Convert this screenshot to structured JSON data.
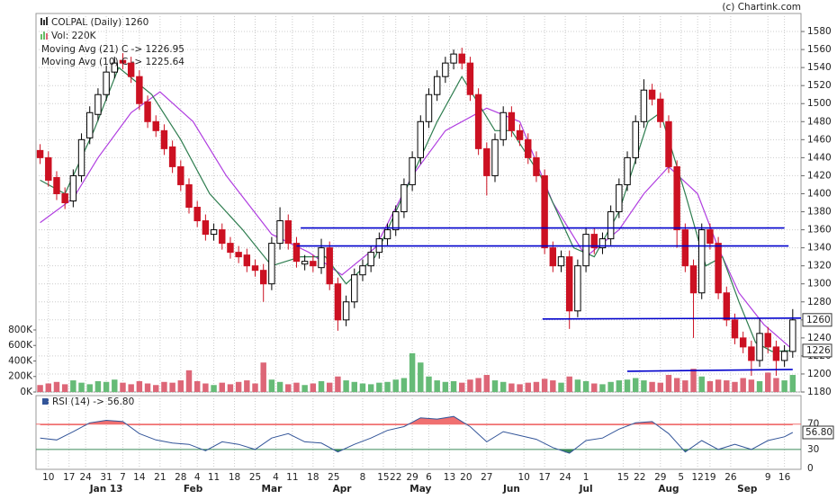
{
  "chart_data": {
    "type": "candlestick",
    "title": "COLPAL (Daily) 1260",
    "volume_title": "Vol: 220K",
    "copyright": "(c) Chartink.com",
    "xlim": [
      -2,
      183
    ],
    "ylim": [
      1180,
      1600
    ],
    "yticks": [
      1180,
      1200,
      1220,
      1240,
      1260,
      1280,
      1300,
      1320,
      1340,
      1360,
      1380,
      1400,
      1420,
      1440,
      1460,
      1480,
      1500,
      1520,
      1540,
      1560,
      1580
    ],
    "vol_ylim": [
      0,
      4880000
    ],
    "vol_ticks": [
      {
        "value": 0,
        "label": "0K"
      },
      {
        "value": 200000,
        "label": "200K"
      },
      {
        "value": 400000,
        "label": "400K"
      },
      {
        "value": 600000,
        "label": "600K"
      },
      {
        "value": 800000,
        "label": "800K"
      }
    ],
    "price_markers": [
      1260,
      1226
    ],
    "xticks": [
      {
        "value": 1,
        "label": "10"
      },
      {
        "value": 6,
        "label": "17"
      },
      {
        "value": 10,
        "label": "24"
      },
      {
        "value": 15,
        "label": "31"
      },
      {
        "value": 19,
        "label": "7"
      },
      {
        "value": 23,
        "label": "14"
      },
      {
        "value": 28,
        "label": "21"
      },
      {
        "value": 33,
        "label": "28"
      },
      {
        "value": 37,
        "label": "4"
      },
      {
        "value": 41,
        "label": "11"
      },
      {
        "value": 46,
        "label": "18"
      },
      {
        "value": 51,
        "label": "25"
      },
      {
        "value": 56,
        "label": "4"
      },
      {
        "value": 60,
        "label": "11"
      },
      {
        "value": 65,
        "label": "18"
      },
      {
        "value": 70,
        "label": "25"
      },
      {
        "value": 77,
        "label": "8"
      },
      {
        "value": 82,
        "label": "15"
      },
      {
        "value": 85,
        "label": "22"
      },
      {
        "value": 89,
        "label": "29"
      },
      {
        "value": 93,
        "label": "6"
      },
      {
        "value": 98,
        "label": "13"
      },
      {
        "value": 102,
        "label": "20"
      },
      {
        "value": 107,
        "label": "27"
      },
      {
        "value": 116,
        "label": "10"
      },
      {
        "value": 121,
        "label": "17"
      },
      {
        "value": 126,
        "label": "24"
      },
      {
        "value": 131,
        "label": "1"
      },
      {
        "value": 140,
        "label": "15"
      },
      {
        "value": 144,
        "label": "22"
      },
      {
        "value": 149,
        "label": "29"
      },
      {
        "value": 154,
        "label": "5"
      },
      {
        "value": 158,
        "label": "12"
      },
      {
        "value": 161,
        "label": "19"
      },
      {
        "value": 166,
        "label": "26"
      },
      {
        "value": 175,
        "label": "9"
      },
      {
        "value": 179,
        "label": "16"
      }
    ],
    "months": [
      {
        "value": 15,
        "label": "Jan 13"
      },
      {
        "value": 36,
        "label": "Feb"
      },
      {
        "value": 55,
        "label": "Mar"
      },
      {
        "value": 72,
        "label": "Apr"
      },
      {
        "value": 91,
        "label": "May"
      },
      {
        "value": 113,
        "label": "Jun"
      },
      {
        "value": 131,
        "label": "Jul"
      },
      {
        "value": 151,
        "label": "Aug"
      },
      {
        "value": 170,
        "label": "Sep"
      }
    ],
    "up_color": "#000000",
    "down_color": "#cc1122",
    "vol_up_color": "#66bb77",
    "vol_down_color": "#dd6677",
    "x": [
      -1,
      1,
      3,
      5,
      7,
      9,
      11,
      13,
      15,
      17,
      19,
      21,
      23,
      25,
      27,
      29,
      31,
      33,
      35,
      37,
      39,
      41,
      43,
      45,
      47,
      49,
      51,
      53,
      55,
      57,
      59,
      61,
      63,
      65,
      67,
      69,
      71,
      73,
      75,
      77,
      79,
      81,
      83,
      85,
      87,
      89,
      91,
      93,
      95,
      97,
      99,
      101,
      103,
      105,
      107,
      109,
      111,
      113,
      115,
      117,
      119,
      121,
      123,
      125,
      127,
      129,
      131,
      133,
      135,
      137,
      139,
      141,
      143,
      145,
      147,
      149,
      151,
      153,
      155,
      157,
      159,
      161,
      163,
      165,
      167,
      169,
      171,
      173,
      175,
      177,
      179,
      181
    ],
    "candles": [
      [
        1448,
        1455,
        1433,
        1440
      ],
      [
        1440,
        1447,
        1408,
        1415
      ],
      [
        1418,
        1425,
        1393,
        1400
      ],
      [
        1400,
        1407,
        1383,
        1390
      ],
      [
        1392,
        1427,
        1385,
        1420
      ],
      [
        1420,
        1467,
        1413,
        1460
      ],
      [
        1462,
        1497,
        1455,
        1490
      ],
      [
        1488,
        1517,
        1481,
        1510
      ],
      [
        1510,
        1542,
        1503,
        1535
      ],
      [
        1535,
        1552,
        1528,
        1545
      ],
      [
        1548,
        1556,
        1538,
        1545
      ],
      [
        1545,
        1552,
        1523,
        1530
      ],
      [
        1530,
        1537,
        1493,
        1500
      ],
      [
        1502,
        1509,
        1473,
        1480
      ],
      [
        1480,
        1487,
        1463,
        1470
      ],
      [
        1470,
        1477,
        1443,
        1450
      ],
      [
        1452,
        1459,
        1423,
        1430
      ],
      [
        1430,
        1437,
        1403,
        1410
      ],
      [
        1410,
        1417,
        1378,
        1385
      ],
      [
        1385,
        1392,
        1363,
        1370
      ],
      [
        1370,
        1377,
        1348,
        1355
      ],
      [
        1355,
        1367,
        1348,
        1360
      ],
      [
        1360,
        1367,
        1338,
        1345
      ],
      [
        1345,
        1352,
        1328,
        1335
      ],
      [
        1335,
        1342,
        1323,
        1330
      ],
      [
        1332,
        1339,
        1313,
        1320
      ],
      [
        1320,
        1327,
        1308,
        1315
      ],
      [
        1315,
        1322,
        1280,
        1300
      ],
      [
        1300,
        1352,
        1293,
        1345
      ],
      [
        1345,
        1385,
        1338,
        1370
      ],
      [
        1370,
        1377,
        1338,
        1345
      ],
      [
        1345,
        1352,
        1318,
        1325
      ],
      [
        1322,
        1332,
        1315,
        1325
      ],
      [
        1325,
        1332,
        1313,
        1320
      ],
      [
        1318,
        1350,
        1311,
        1340
      ],
      [
        1340,
        1347,
        1293,
        1300
      ],
      [
        1300,
        1307,
        1248,
        1260
      ],
      [
        1260,
        1287,
        1253,
        1280
      ],
      [
        1280,
        1317,
        1273,
        1310
      ],
      [
        1310,
        1327,
        1303,
        1320
      ],
      [
        1320,
        1342,
        1313,
        1335
      ],
      [
        1335,
        1357,
        1328,
        1350
      ],
      [
        1350,
        1367,
        1343,
        1360
      ],
      [
        1360,
        1387,
        1353,
        1380
      ],
      [
        1380,
        1417,
        1373,
        1410
      ],
      [
        1410,
        1447,
        1403,
        1440
      ],
      [
        1440,
        1487,
        1433,
        1480
      ],
      [
        1480,
        1517,
        1473,
        1510
      ],
      [
        1510,
        1537,
        1503,
        1530
      ],
      [
        1530,
        1552,
        1523,
        1545
      ],
      [
        1545,
        1560,
        1538,
        1555
      ],
      [
        1555,
        1562,
        1538,
        1545
      ],
      [
        1545,
        1552,
        1503,
        1510
      ],
      [
        1510,
        1517,
        1443,
        1450
      ],
      [
        1450,
        1457,
        1398,
        1420
      ],
      [
        1420,
        1467,
        1413,
        1460
      ],
      [
        1460,
        1497,
        1453,
        1490
      ],
      [
        1490,
        1497,
        1463,
        1470
      ],
      [
        1470,
        1477,
        1453,
        1460
      ],
      [
        1460,
        1467,
        1433,
        1440
      ],
      [
        1440,
        1447,
        1413,
        1420
      ],
      [
        1420,
        1427,
        1333,
        1340
      ],
      [
        1340,
        1347,
        1313,
        1320
      ],
      [
        1320,
        1337,
        1313,
        1330
      ],
      [
        1330,
        1337,
        1250,
        1270
      ],
      [
        1270,
        1327,
        1263,
        1320
      ],
      [
        1320,
        1362,
        1313,
        1355
      ],
      [
        1355,
        1362,
        1333,
        1340
      ],
      [
        1340,
        1357,
        1333,
        1350
      ],
      [
        1350,
        1387,
        1343,
        1380
      ],
      [
        1380,
        1417,
        1373,
        1410
      ],
      [
        1410,
        1447,
        1403,
        1440
      ],
      [
        1440,
        1487,
        1433,
        1480
      ],
      [
        1480,
        1527,
        1473,
        1515
      ],
      [
        1515,
        1522,
        1498,
        1505
      ],
      [
        1505,
        1512,
        1473,
        1480
      ],
      [
        1480,
        1487,
        1423,
        1430
      ],
      [
        1430,
        1437,
        1340,
        1360
      ],
      [
        1360,
        1367,
        1313,
        1320
      ],
      [
        1320,
        1327,
        1240,
        1290
      ],
      [
        1290,
        1367,
        1283,
        1360
      ],
      [
        1360,
        1367,
        1338,
        1345
      ],
      [
        1345,
        1352,
        1283,
        1290
      ],
      [
        1290,
        1297,
        1253,
        1260
      ],
      [
        1260,
        1267,
        1233,
        1240
      ],
      [
        1240,
        1247,
        1223,
        1230
      ],
      [
        1230,
        1237,
        1198,
        1215
      ],
      [
        1215,
        1262,
        1208,
        1245
      ],
      [
        1245,
        1252,
        1223,
        1230
      ],
      [
        1230,
        1237,
        1198,
        1215
      ],
      [
        1215,
        1232,
        1208,
        1225
      ],
      [
        1225,
        1272,
        1218,
        1260
      ]
    ],
    "volume": [
      90000,
      110000,
      130000,
      100000,
      150000,
      120000,
      100000,
      140000,
      130000,
      160000,
      120000,
      100000,
      140000,
      110000,
      90000,
      130000,
      120000,
      150000,
      280000,
      140000,
      110000,
      90000,
      120000,
      100000,
      130000,
      150000,
      110000,
      380000,
      160000,
      130000,
      100000,
      120000,
      90000,
      110000,
      140000,
      120000,
      200000,
      150000,
      130000,
      110000,
      100000,
      120000,
      130000,
      160000,
      180000,
      500000,
      380000,
      200000,
      150000,
      130000,
      140000,
      120000,
      160000,
      180000,
      220000,
      150000,
      130000,
      110000,
      100000,
      120000,
      130000,
      170000,
      150000,
      120000,
      200000,
      160000,
      140000,
      110000,
      100000,
      130000,
      150000,
      160000,
      180000,
      150000,
      130000,
      120000,
      220000,
      180000,
      150000,
      300000,
      200000,
      140000,
      160000,
      150000,
      130000,
      180000,
      160000,
      140000,
      250000,
      180000,
      150000,
      220000
    ],
    "series": [
      {
        "name": "Moving Avg (21) C -> 1226.95",
        "color": "#b03ee0",
        "x": [
          -1,
          7,
          13,
          21,
          28,
          36,
          44,
          55,
          64,
          72,
          80,
          89,
          97,
          107,
          115,
          123,
          131,
          139,
          145,
          151,
          158,
          163,
          168,
          174,
          181
        ],
        "values": [
          1368,
          1395,
          1440,
          1490,
          1513,
          1480,
          1420,
          1355,
          1335,
          1310,
          1340,
          1420,
          1470,
          1495,
          1480,
          1390,
          1330,
          1360,
          1400,
          1430,
          1400,
          1340,
          1290,
          1255,
          1227
        ]
      },
      {
        "name": "Moving Avg (10) C -> 1225.64",
        "color": "#2e7d4f",
        "x": [
          -1,
          5,
          12,
          18,
          26,
          33,
          40,
          48,
          55,
          62,
          68,
          73,
          80,
          87,
          95,
          101,
          109,
          113,
          120,
          128,
          133,
          139,
          146,
          149,
          155,
          160,
          164,
          168,
          172,
          176,
          181
        ],
        "values": [
          1415,
          1400,
          1470,
          1540,
          1510,
          1460,
          1400,
          1360,
          1320,
          1330,
          1330,
          1300,
          1330,
          1400,
          1480,
          1530,
          1470,
          1470,
          1420,
          1340,
          1330,
          1380,
          1480,
          1490,
          1400,
          1320,
          1330,
          1280,
          1235,
          1225,
          1226
        ]
      }
    ],
    "trendlines": [
      {
        "color": "#0000cc",
        "x": [
          62,
          179
        ],
        "values": [
          1362,
          1362
        ]
      },
      {
        "color": "#0000cc",
        "x": [
          61,
          180
        ],
        "values": [
          1342,
          1342
        ]
      },
      {
        "color": "#0000cc",
        "x": [
          120.5,
          183
        ],
        "values": [
          1261,
          1262
        ]
      },
      {
        "color": "#0000cc",
        "x": [
          141,
          181
        ],
        "values": [
          1203,
          1205
        ]
      }
    ],
    "rsi": {
      "name": "RSI (14) -> 56.80",
      "color": "#335599",
      "last_label": "56.80",
      "ylim": [
        0,
        115
      ],
      "yticks": [
        0,
        30,
        70
      ],
      "overbought_color": "#f07070",
      "oversold_color": "#3a8a5a",
      "x": [
        -1,
        3,
        7,
        11,
        15,
        19,
        23,
        27,
        31,
        35,
        39,
        43,
        47,
        51,
        55,
        59,
        63,
        67,
        71,
        75,
        79,
        83,
        87,
        91,
        95,
        99,
        103,
        107,
        111,
        115,
        119,
        123,
        127,
        131,
        135,
        139,
        143,
        147,
        151,
        155,
        159,
        163,
        167,
        171,
        175,
        179,
        181
      ],
      "values": [
        48,
        45,
        58,
        72,
        76,
        74,
        55,
        45,
        40,
        38,
        28,
        42,
        38,
        30,
        48,
        55,
        42,
        40,
        26,
        38,
        48,
        60,
        66,
        80,
        78,
        82,
        66,
        42,
        58,
        52,
        46,
        33,
        24,
        44,
        48,
        62,
        72,
        74,
        55,
        26,
        44,
        30,
        38,
        30,
        44,
        50,
        56.8
      ]
    }
  }
}
